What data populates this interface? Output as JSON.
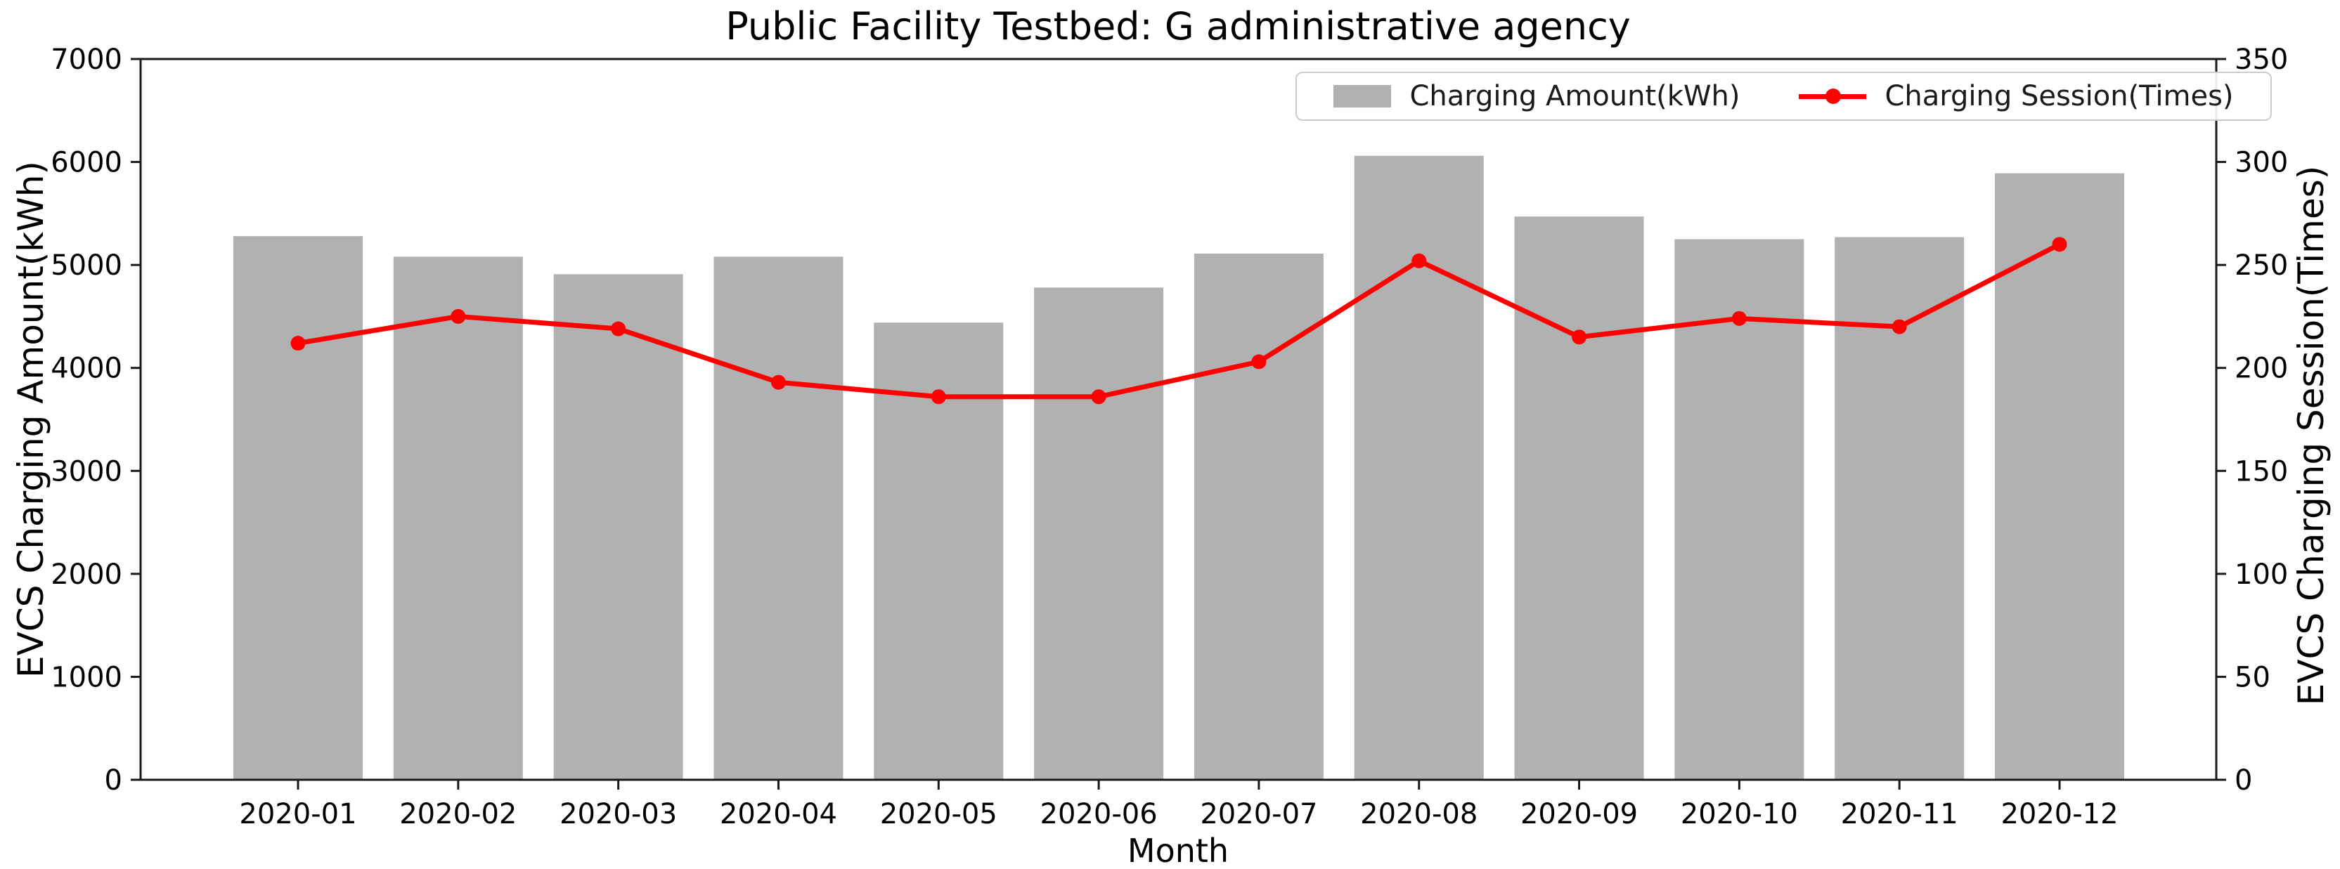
{
  "title": "Public Facility Testbed: G administrative agency",
  "xlabel": "Month",
  "ylabel_left": "EVCS Charging Amount(kWh)",
  "ylabel_right": "EVCS Charging Session(Times)",
  "legend": {
    "bar_label": "Charging Amount(kWh)",
    "line_label": "Charging Session(Times)"
  },
  "colors": {
    "bar_fill": "#b1b1b1",
    "line": "#ff0000",
    "spine": "#1a1a1a",
    "legend_border": "#cccccc",
    "text": "#000000"
  },
  "axes": {
    "left_ticks": [
      0,
      1000,
      2000,
      3000,
      4000,
      5000,
      6000,
      7000
    ],
    "right_ticks": [
      0,
      50,
      100,
      150,
      200,
      250,
      300,
      350
    ]
  },
  "chart_data": {
    "type": "bar+line",
    "title": "Public Facility Testbed: G administrative agency",
    "xlabel": "Month",
    "ylabel_left": "EVCS Charging Amount(kWh)",
    "ylabel_right": "EVCS Charging Session(Times)",
    "categories": [
      "2020-01",
      "2020-02",
      "2020-03",
      "2020-04",
      "2020-05",
      "2020-06",
      "2020-07",
      "2020-08",
      "2020-09",
      "2020-10",
      "2020-11",
      "2020-12"
    ],
    "series": [
      {
        "name": "Charging Amount(kWh)",
        "type": "bar",
        "axis": "left",
        "values": [
          5280,
          5080,
          4910,
          5080,
          4440,
          4780,
          5110,
          6060,
          5470,
          5250,
          5270,
          5890
        ]
      },
      {
        "name": "Charging Session(Times)",
        "type": "line",
        "axis": "right",
        "values": [
          212,
          225,
          219,
          193,
          186,
          186,
          203,
          252,
          215,
          224,
          220,
          260
        ]
      }
    ],
    "ylim_left": [
      0,
      7000
    ],
    "ylim_right": [
      0,
      350
    ],
    "grid": false,
    "legend_position": "upper right"
  }
}
